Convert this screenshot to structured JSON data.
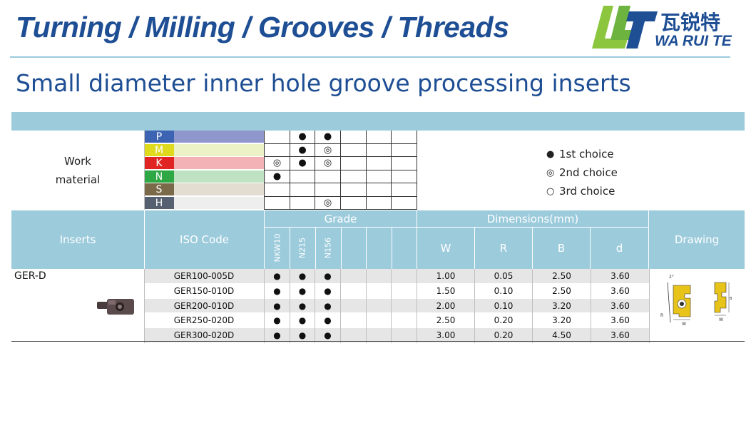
{
  "banner": {
    "title": "Turning / Milling / Grooves / Threads",
    "logo_cn": "瓦锐特",
    "logo_en": "WA RUI TE"
  },
  "page_title": "Small diameter inner hole groove processing inserts",
  "work_material": {
    "label_line1": "Work",
    "label_line2": "material",
    "materials": [
      {
        "letter": "P",
        "color": "#3d63b3",
        "bar_color": "#8f97cc",
        "marks": [
          "",
          "●",
          "●",
          "",
          "",
          ""
        ]
      },
      {
        "letter": "M",
        "color": "#e0da1f",
        "bar_color": "#edf2c6",
        "marks": [
          "",
          "●",
          "◎",
          "",
          "",
          ""
        ]
      },
      {
        "letter": "K",
        "color": "#e02424",
        "bar_color": "#f3b2b5",
        "marks": [
          "◎",
          "●",
          "◎",
          "",
          "",
          ""
        ]
      },
      {
        "letter": "N",
        "color": "#2ea745",
        "bar_color": "#bfe3c2",
        "marks": [
          "●",
          "",
          "",
          "",
          "",
          ""
        ]
      },
      {
        "letter": "S",
        "color": "#7a6a4a",
        "bar_color": "#e2ddd0",
        "marks": [
          "",
          "",
          "",
          "",
          "",
          ""
        ]
      },
      {
        "letter": "H",
        "color": "#556070",
        "bar_color": "#eeeeee",
        "marks": [
          "",
          "",
          "◎",
          "",
          "",
          ""
        ]
      }
    ]
  },
  "legend": [
    {
      "symbol": "●",
      "label": "1st choice"
    },
    {
      "symbol": "◎",
      "label": "2nd choice"
    },
    {
      "symbol": "○",
      "label": "3rd choice"
    }
  ],
  "header": {
    "inserts": "Inserts",
    "iso_code": "ISO Code",
    "grade": "Grade",
    "grades": [
      "NKW10",
      "N215",
      "N156"
    ],
    "dimensions": "Dimensions(mm)",
    "dims": [
      "W",
      "R",
      "B",
      "d"
    ],
    "drawing": "Drawing"
  },
  "product": {
    "name": "GER-D",
    "rows": [
      {
        "code": "GER100-005D",
        "marks": [
          "●",
          "●",
          "●"
        ],
        "W": "1.00",
        "R": "0.05",
        "B": "2.50",
        "d": "3.60"
      },
      {
        "code": "GER150-010D",
        "marks": [
          "●",
          "●",
          "●"
        ],
        "W": "1.50",
        "R": "0.10",
        "B": "2.50",
        "d": "3.60"
      },
      {
        "code": "GER200-010D",
        "marks": [
          "●",
          "●",
          "●"
        ],
        "W": "2.00",
        "R": "0.10",
        "B": "3.20",
        "d": "3.60"
      },
      {
        "code": "GER250-020D",
        "marks": [
          "●",
          "●",
          "●"
        ],
        "W": "2.50",
        "R": "0.20",
        "B": "3.20",
        "d": "3.60"
      },
      {
        "code": "GER300-020D",
        "marks": [
          "●",
          "●",
          "●"
        ],
        "W": "3.00",
        "R": "0.20",
        "B": "4.50",
        "d": "3.60"
      }
    ]
  },
  "drawing_labels": {
    "angle": "2°",
    "r": "R",
    "w": "W",
    "b": "B"
  },
  "colors": {
    "header_blue": "#9ccbdc",
    "title_blue": "#1e4e94",
    "logo_green": "#8cc63f",
    "row_grey": "#e7e6e6"
  }
}
